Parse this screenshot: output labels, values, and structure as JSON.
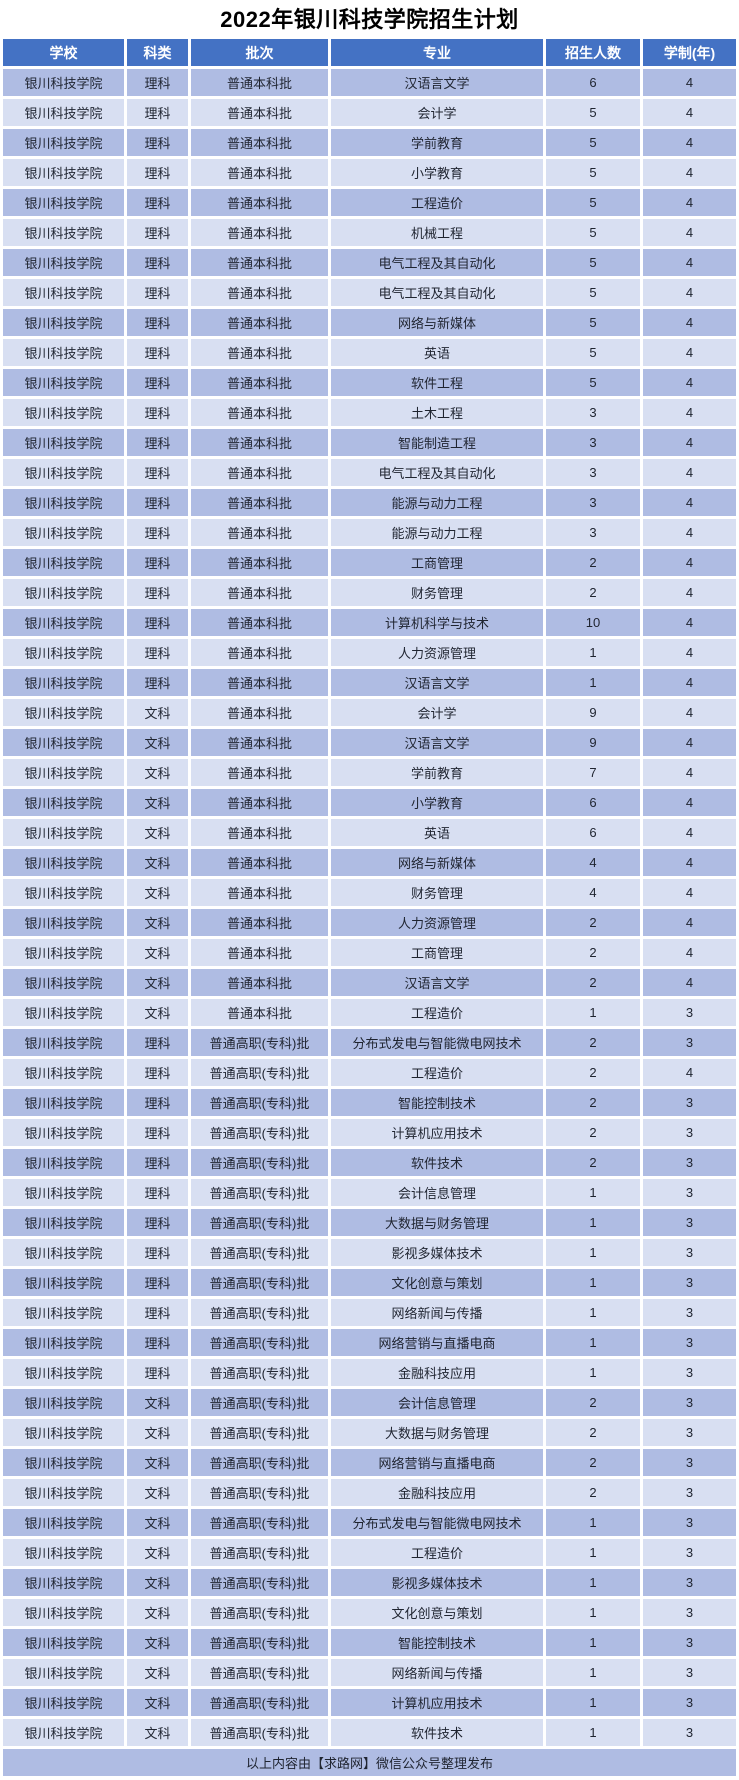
{
  "title": "2022年银川科技学院招生计划",
  "columns": [
    "学校",
    "科类",
    "批次",
    "专业",
    "招生人数",
    "学制(年)"
  ],
  "footer": "以上内容由【求路网】微信公众号整理发布",
  "colors": {
    "header_bg": "#4472C4",
    "header_text": "#FFFFFF",
    "row_dark": "#AFBCE3",
    "row_light": "#D8DFF2",
    "cell_text": "#1F2430",
    "title_text": "#000000"
  },
  "chart_data": {
    "type": "table",
    "title": "2022年银川科技学院招生计划",
    "columns": [
      "学校",
      "科类",
      "批次",
      "专业",
      "招生人数",
      "学制(年)"
    ],
    "rows_note": "see rows"
  },
  "rows": [
    [
      "银川科技学院",
      "理科",
      "普通本科批",
      "汉语言文学",
      "6",
      "4"
    ],
    [
      "银川科技学院",
      "理科",
      "普通本科批",
      "会计学",
      "5",
      "4"
    ],
    [
      "银川科技学院",
      "理科",
      "普通本科批",
      "学前教育",
      "5",
      "4"
    ],
    [
      "银川科技学院",
      "理科",
      "普通本科批",
      "小学教育",
      "5",
      "4"
    ],
    [
      "银川科技学院",
      "理科",
      "普通本科批",
      "工程造价",
      "5",
      "4"
    ],
    [
      "银川科技学院",
      "理科",
      "普通本科批",
      "机械工程",
      "5",
      "4"
    ],
    [
      "银川科技学院",
      "理科",
      "普通本科批",
      "电气工程及其自动化",
      "5",
      "4"
    ],
    [
      "银川科技学院",
      "理科",
      "普通本科批",
      "电气工程及其自动化",
      "5",
      "4"
    ],
    [
      "银川科技学院",
      "理科",
      "普通本科批",
      "网络与新媒体",
      "5",
      "4"
    ],
    [
      "银川科技学院",
      "理科",
      "普通本科批",
      "英语",
      "5",
      "4"
    ],
    [
      "银川科技学院",
      "理科",
      "普通本科批",
      "软件工程",
      "5",
      "4"
    ],
    [
      "银川科技学院",
      "理科",
      "普通本科批",
      "土木工程",
      "3",
      "4"
    ],
    [
      "银川科技学院",
      "理科",
      "普通本科批",
      "智能制造工程",
      "3",
      "4"
    ],
    [
      "银川科技学院",
      "理科",
      "普通本科批",
      "电气工程及其自动化",
      "3",
      "4"
    ],
    [
      "银川科技学院",
      "理科",
      "普通本科批",
      "能源与动力工程",
      "3",
      "4"
    ],
    [
      "银川科技学院",
      "理科",
      "普通本科批",
      "能源与动力工程",
      "3",
      "4"
    ],
    [
      "银川科技学院",
      "理科",
      "普通本科批",
      "工商管理",
      "2",
      "4"
    ],
    [
      "银川科技学院",
      "理科",
      "普通本科批",
      "财务管理",
      "2",
      "4"
    ],
    [
      "银川科技学院",
      "理科",
      "普通本科批",
      "计算机科学与技术",
      "10",
      "4"
    ],
    [
      "银川科技学院",
      "理科",
      "普通本科批",
      "人力资源管理",
      "1",
      "4"
    ],
    [
      "银川科技学院",
      "理科",
      "普通本科批",
      "汉语言文学",
      "1",
      "4"
    ],
    [
      "银川科技学院",
      "文科",
      "普通本科批",
      "会计学",
      "9",
      "4"
    ],
    [
      "银川科技学院",
      "文科",
      "普通本科批",
      "汉语言文学",
      "9",
      "4"
    ],
    [
      "银川科技学院",
      "文科",
      "普通本科批",
      "学前教育",
      "7",
      "4"
    ],
    [
      "银川科技学院",
      "文科",
      "普通本科批",
      "小学教育",
      "6",
      "4"
    ],
    [
      "银川科技学院",
      "文科",
      "普通本科批",
      "英语",
      "6",
      "4"
    ],
    [
      "银川科技学院",
      "文科",
      "普通本科批",
      "网络与新媒体",
      "4",
      "4"
    ],
    [
      "银川科技学院",
      "文科",
      "普通本科批",
      "财务管理",
      "4",
      "4"
    ],
    [
      "银川科技学院",
      "文科",
      "普通本科批",
      "人力资源管理",
      "2",
      "4"
    ],
    [
      "银川科技学院",
      "文科",
      "普通本科批",
      "工商管理",
      "2",
      "4"
    ],
    [
      "银川科技学院",
      "文科",
      "普通本科批",
      "汉语言文学",
      "2",
      "4"
    ],
    [
      "银川科技学院",
      "文科",
      "普通本科批",
      "工程造价",
      "1",
      "3"
    ],
    [
      "银川科技学院",
      "理科",
      "普通高职(专科)批",
      "分布式发电与智能微电网技术",
      "2",
      "3"
    ],
    [
      "银川科技学院",
      "理科",
      "普通高职(专科)批",
      "工程造价",
      "2",
      "4"
    ],
    [
      "银川科技学院",
      "理科",
      "普通高职(专科)批",
      "智能控制技术",
      "2",
      "3"
    ],
    [
      "银川科技学院",
      "理科",
      "普通高职(专科)批",
      "计算机应用技术",
      "2",
      "3"
    ],
    [
      "银川科技学院",
      "理科",
      "普通高职(专科)批",
      "软件技术",
      "2",
      "3"
    ],
    [
      "银川科技学院",
      "理科",
      "普通高职(专科)批",
      "会计信息管理",
      "1",
      "3"
    ],
    [
      "银川科技学院",
      "理科",
      "普通高职(专科)批",
      "大数据与财务管理",
      "1",
      "3"
    ],
    [
      "银川科技学院",
      "理科",
      "普通高职(专科)批",
      "影视多媒体技术",
      "1",
      "3"
    ],
    [
      "银川科技学院",
      "理科",
      "普通高职(专科)批",
      "文化创意与策划",
      "1",
      "3"
    ],
    [
      "银川科技学院",
      "理科",
      "普通高职(专科)批",
      "网络新闻与传播",
      "1",
      "3"
    ],
    [
      "银川科技学院",
      "理科",
      "普通高职(专科)批",
      "网络营销与直播电商",
      "1",
      "3"
    ],
    [
      "银川科技学院",
      "理科",
      "普通高职(专科)批",
      "金融科技应用",
      "1",
      "3"
    ],
    [
      "银川科技学院",
      "文科",
      "普通高职(专科)批",
      "会计信息管理",
      "2",
      "3"
    ],
    [
      "银川科技学院",
      "文科",
      "普通高职(专科)批",
      "大数据与财务管理",
      "2",
      "3"
    ],
    [
      "银川科技学院",
      "文科",
      "普通高职(专科)批",
      "网络营销与直播电商",
      "2",
      "3"
    ],
    [
      "银川科技学院",
      "文科",
      "普通高职(专科)批",
      "金融科技应用",
      "2",
      "3"
    ],
    [
      "银川科技学院",
      "文科",
      "普通高职(专科)批",
      "分布式发电与智能微电网技术",
      "1",
      "3"
    ],
    [
      "银川科技学院",
      "文科",
      "普通高职(专科)批",
      "工程造价",
      "1",
      "3"
    ],
    [
      "银川科技学院",
      "文科",
      "普通高职(专科)批",
      "影视多媒体技术",
      "1",
      "3"
    ],
    [
      "银川科技学院",
      "文科",
      "普通高职(专科)批",
      "文化创意与策划",
      "1",
      "3"
    ],
    [
      "银川科技学院",
      "文科",
      "普通高职(专科)批",
      "智能控制技术",
      "1",
      "3"
    ],
    [
      "银川科技学院",
      "文科",
      "普通高职(专科)批",
      "网络新闻与传播",
      "1",
      "3"
    ],
    [
      "银川科技学院",
      "文科",
      "普通高职(专科)批",
      "计算机应用技术",
      "1",
      "3"
    ],
    [
      "银川科技学院",
      "文科",
      "普通高职(专科)批",
      "软件技术",
      "1",
      "3"
    ]
  ]
}
